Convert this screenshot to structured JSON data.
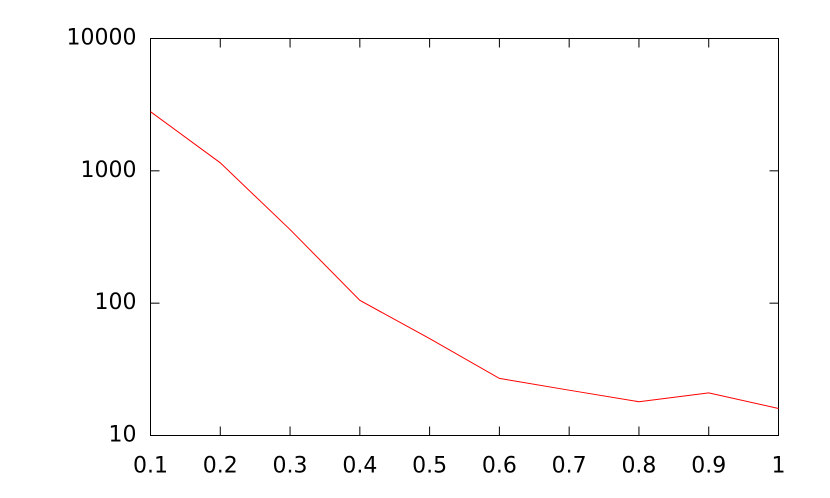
{
  "chart_data": {
    "type": "line",
    "x": [
      0.1,
      0.2,
      0.3,
      0.4,
      0.5,
      0.6,
      0.7,
      0.8,
      0.9,
      1
    ],
    "series": [
      {
        "color": "#ff0000",
        "values": [
          2800,
          1150,
          360,
          105,
          54,
          27,
          22,
          18,
          21,
          16
        ]
      }
    ],
    "xlim": [
      0.1,
      1
    ],
    "xticks": [
      0.1,
      0.2,
      0.3,
      0.4,
      0.5,
      0.6,
      0.7,
      0.8,
      0.9,
      1
    ],
    "ylim": [
      10,
      10000
    ],
    "yticks": [
      10,
      100,
      1000,
      10000
    ],
    "y_log_scale": true
  }
}
